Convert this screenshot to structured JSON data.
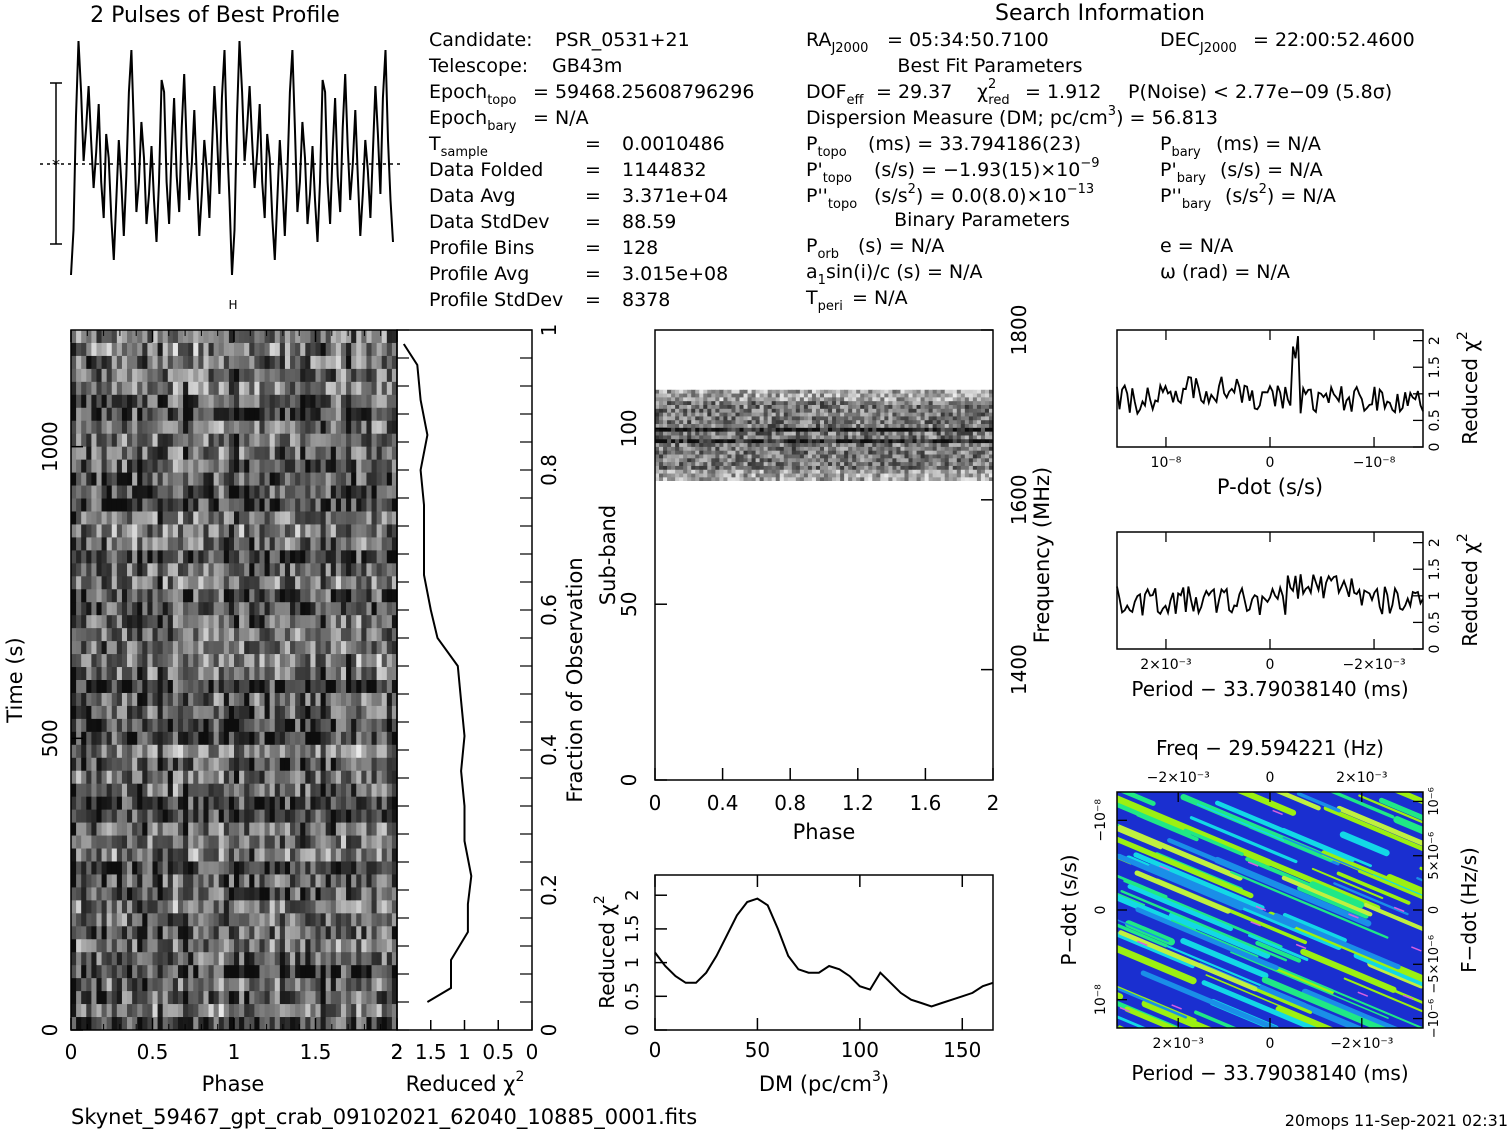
{
  "profile_title": "2 Pulses of Best Profile",
  "search_title": "Search Information",
  "candidate": {
    "lines": [
      {
        "label": "Candidate:",
        "value": "PSR_0531+21"
      },
      {
        "label": "Telescope:",
        "value": "GB43m"
      },
      {
        "label": "Epoch",
        "sub": "topo",
        "value": "= 59468.25608796296"
      },
      {
        "label": "Epoch",
        "sub": "bary",
        "value": "= N/A"
      }
    ],
    "stats": [
      {
        "label": "T",
        "sub": "sample",
        "value": "0.0010486"
      },
      {
        "label": "Data Folded",
        "sub": "",
        "value": "1144832"
      },
      {
        "label": "Data Avg",
        "sub": "",
        "value": "3.371e+04"
      },
      {
        "label": "Data StdDev",
        "sub": "",
        "value": "88.59"
      },
      {
        "label": "Profile Bins",
        "sub": "",
        "value": "128"
      },
      {
        "label": "Profile Avg",
        "sub": "",
        "value": "3.015e+08"
      },
      {
        "label": "Profile StdDev",
        "sub": "",
        "value": "8378"
      }
    ]
  },
  "search_info": {
    "ra": "= 05:34:50.7100",
    "dec": "= 22:00:52.4600",
    "best_fit_header": "Best Fit Parameters",
    "dof": "= 29.37",
    "chi_red": "= 1.912",
    "pnoise": "P(Noise) < 2.77e−09   (5.8σ)",
    "dm_line_a": "Dispersion Measure (DM; pc/cm",
    "dm_line_b": ") = 56.813",
    "ptopo": "(ms) =  33.794186(23)",
    "pbary": "(ms) = N/A",
    "pdtopo": "(s/s) = −1.93(15)×10",
    "pdtopo_exp": "−9",
    "pdbary": "(s/s) = N/A",
    "pddtopo": "(s/s",
    "pddtopo_b": ") = 0.0(8.0)×10",
    "pddtopo_exp": "−13",
    "pddbary": "(s/s",
    "pddbary_b": ") = N/A",
    "binary_header": "Binary Parameters",
    "porb": "(s) = N/A",
    "e": "e = N/A",
    "a1": "sin(i)/c (s) = N/A",
    "omega": "ω (rad) = N/A",
    "tperi": "= N/A"
  },
  "footer": {
    "filename": "Skynet_59467_gpt_crab_09102021_62040_10885_0001.fits",
    "stamp": "20mops 11-Sep-2021 02:31"
  },
  "chart_data": [
    {
      "type": "line",
      "name": "pulse-profile",
      "title": "2 Pulses of Best Profile",
      "x": [
        0,
        0.015625,
        0.03125,
        0.046875,
        0.0625,
        0.078125,
        0.09375,
        0.109375,
        0.125,
        0.140625,
        0.15625,
        0.171875,
        0.1875,
        0.203125,
        0.21875,
        0.234375,
        0.25,
        0.265625,
        0.28125,
        0.296875,
        0.3125,
        0.328125,
        0.34375,
        0.359375,
        0.375,
        0.390625,
        0.40625,
        0.421875,
        0.4375,
        0.453125,
        0.46875,
        0.484375,
        0.5,
        0.515625,
        0.53125,
        0.546875,
        0.5625,
        0.578125,
        0.59375,
        0.609375,
        0.625,
        0.640625,
        0.65625,
        0.671875,
        0.6875,
        0.703125,
        0.71875,
        0.734375,
        0.75,
        0.765625,
        0.78125,
        0.796875,
        0.8125,
        0.828125,
        0.84375,
        0.859375,
        0.875,
        0.890625,
        0.90625,
        0.921875,
        0.9375,
        0.953125,
        0.96875,
        0.984375,
        1
      ],
      "values": [
        -1.85,
        -1.1,
        0.8,
        2.05,
        1.2,
        0.05,
        0.6,
        1.3,
        0.4,
        -0.4,
        0.2,
        1.0,
        -0.3,
        -0.9,
        0.5,
        0.1,
        -0.9,
        -1.6,
        -0.6,
        0.4,
        -0.3,
        -1.2,
        -0.2,
        1.2,
        1.9,
        0.6,
        -0.8,
        -0.3,
        0.7,
        0.1,
        -1.0,
        -0.5,
        0.3,
        -0.6,
        -1.3,
        -0.3,
        1.4,
        1.2,
        -0.3,
        -1.0,
        0.2,
        1.1,
        -0.2,
        -0.8,
        0.6,
        1.5,
        0.3,
        -0.6,
        0.0,
        0.9,
        -0.2,
        -1.2,
        -0.5,
        0.4,
        -0.1,
        -0.9,
        0.2,
        1.3,
        0.5,
        -0.5,
        1.1,
        1.9,
        0.4,
        -0.6,
        -1.3
      ],
      "xlim": [
        0,
        2
      ],
      "errorbar": true
    },
    {
      "type": "heatmap",
      "name": "time-phase",
      "xlabel": "Phase",
      "ylabel": "Time (s)",
      "right_label": "Fraction of Observation",
      "xlim": [
        0,
        2
      ],
      "ylim": [
        0,
        1200
      ],
      "xticks": [
        "0",
        "0.5",
        "1",
        "1.5",
        "2"
      ],
      "yticks": [
        "0",
        "500",
        "1000"
      ],
      "fraction_ticks": [
        "0",
        "0.2",
        "0.4",
        "0.6",
        "0.8",
        "1"
      ],
      "colormap": "grayscale"
    },
    {
      "type": "line",
      "name": "time-chi",
      "xlabel": "Reduced χ²",
      "xticks": [
        "2",
        "1.5",
        "1",
        "0.5",
        "0"
      ],
      "x_reversed": true,
      "xlim": [
        0,
        2
      ],
      "fraction": [
        0.04,
        0.06,
        0.1,
        0.14,
        0.18,
        0.22,
        0.27,
        0.32,
        0.37,
        0.42,
        0.47,
        0.52,
        0.56,
        0.6,
        0.65,
        0.7,
        0.75,
        0.8,
        0.85,
        0.9,
        0.95,
        0.98
      ],
      "values": [
        1.55,
        1.2,
        1.2,
        0.95,
        0.95,
        0.9,
        1.0,
        1.0,
        1.05,
        1.0,
        1.05,
        1.1,
        1.4,
        1.5,
        1.6,
        1.6,
        1.6,
        1.65,
        1.55,
        1.65,
        1.7,
        1.9
      ]
    },
    {
      "type": "heatmap",
      "name": "phase-subband",
      "xlabel": "Phase",
      "ylabel": "Sub-band",
      "right_label": "Frequency (MHz)",
      "xlim": [
        0,
        2
      ],
      "ylim": [
        0,
        128
      ],
      "xticks": [
        "0",
        "0.4",
        "0.8",
        "1.2",
        "1.6",
        "2"
      ],
      "yticks": [
        "0",
        "50",
        "100"
      ],
      "freq_ticks": [
        "1400",
        "1600",
        "1800"
      ],
      "band_subbands": [
        85,
        111
      ]
    },
    {
      "type": "line",
      "name": "dm-chi",
      "xlabel": "DM (pc/cm³)",
      "ylabel": "Reduced χ²",
      "xlim": [
        0,
        165
      ],
      "ylim": [
        0,
        2.3
      ],
      "xticks": [
        "0",
        "50",
        "100",
        "150"
      ],
      "yticks": [
        "0",
        "0.5",
        "1",
        "1.5",
        "2"
      ],
      "x": [
        0,
        5,
        10,
        15,
        20,
        25,
        30,
        35,
        40,
        45,
        50,
        55,
        60,
        65,
        70,
        75,
        80,
        85,
        90,
        95,
        100,
        105,
        110,
        115,
        120,
        125,
        130,
        135,
        140,
        145,
        150,
        155,
        160,
        165
      ],
      "values": [
        1.15,
        0.95,
        0.8,
        0.7,
        0.7,
        0.85,
        1.1,
        1.4,
        1.7,
        1.9,
        1.95,
        1.85,
        1.5,
        1.1,
        0.9,
        0.85,
        0.85,
        0.95,
        0.9,
        0.8,
        0.65,
        0.6,
        0.85,
        0.7,
        0.55,
        0.45,
        0.4,
        0.35,
        0.4,
        0.45,
        0.5,
        0.55,
        0.65,
        0.7
      ]
    },
    {
      "type": "line",
      "name": "pdot-chi",
      "xlabel": "P-dot (s/s)",
      "ylabel": "Reduced χ²",
      "ylim": [
        0,
        2.2
      ],
      "xticks": [
        "10⁻⁸",
        "0",
        "−10⁻⁸"
      ],
      "yticks": [
        "0",
        "0.5",
        "1",
        "1.5",
        "2"
      ],
      "peak_x": 0.58,
      "peak": 1.9,
      "baseline": 0.9
    },
    {
      "type": "line",
      "name": "period-chi",
      "xlabel": "Period − 33.79038140 (ms)",
      "ylabel": "Reduced χ²",
      "ylim": [
        0,
        2.2
      ],
      "xticks": [
        "2×10⁻³",
        "0",
        "−2×10⁻³"
      ],
      "yticks": [
        "0",
        "0.5",
        "1",
        "1.5",
        "2"
      ],
      "baseline": 0.9
    },
    {
      "type": "heatmap",
      "name": "period-pdot",
      "title": "Freq − 29.594221 (Hz)",
      "xlabel": "Period − 33.79038140 (ms)",
      "ylabel": "P−dot (s/s)",
      "right_label": "F−dot (Hz/s)",
      "top_ticks": [
        "−2×10⁻³",
        "0",
        "2×10⁻³"
      ],
      "bottom_ticks": [
        "2×10⁻³",
        "0",
        "−2×10⁻³"
      ],
      "left_ticks": [
        "−10⁻⁸",
        "0",
        "10⁻⁸"
      ],
      "right_ticks": [
        "10⁻⁶",
        "5×10⁻⁶",
        "0",
        "−5×10⁻⁶",
        "−10⁻⁶"
      ],
      "colors": [
        "#1a2fd0",
        "#1a8ee8",
        "#13d8e6",
        "#20e886",
        "#9bf012",
        "#c0f040",
        "#d860e0"
      ]
    }
  ]
}
